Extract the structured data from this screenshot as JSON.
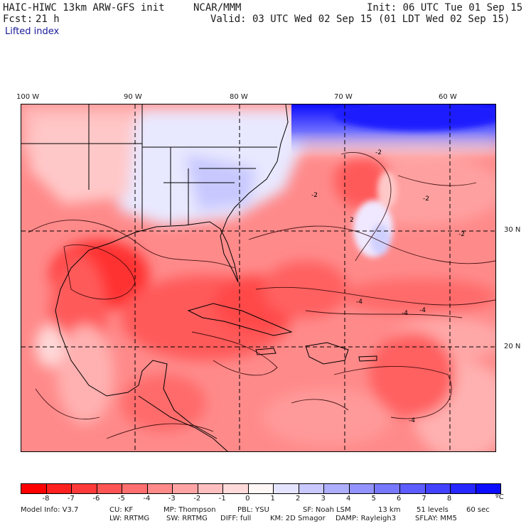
{
  "header": {
    "model": "HAIC-HIWC 13km ARW-GFS init",
    "org": "NCAR/MMM",
    "init": "Init: 06 UTC Tue 01 Sep 15",
    "fcst_label": "Fcst:",
    "fcst_value": "21 h",
    "valid": "Valid: 03 UTC Wed 02 Sep 15 (01 LDT Wed 02 Sep 15)",
    "field": "Lifted index"
  },
  "map": {
    "lon_labels": [
      "100 W",
      "90 W",
      "80 W",
      "70 W",
      "60 W"
    ],
    "lat_labels": [
      "30 N",
      "20 N"
    ],
    "contour_labels": [
      "-2",
      "-2",
      "-2",
      "2",
      "-4",
      "-4",
      "-4",
      "-2",
      "-4"
    ]
  },
  "colorbar": {
    "colors": [
      "#ff0000",
      "#ff2020",
      "#ff3a3a",
      "#ff5555",
      "#ff6f6f",
      "#ff8a8a",
      "#ffa4a4",
      "#ffbfbf",
      "#ffdada",
      "#fff6f6",
      "#e4e4ff",
      "#c9c9ff",
      "#aeaeff",
      "#9393ff",
      "#7878ff",
      "#5d5dff",
      "#4242ff",
      "#2727ff",
      "#0c0cff"
    ],
    "ticks": [
      "-8",
      "-7",
      "-6",
      "-5",
      "-4",
      "-3",
      "-2",
      "-1",
      "0",
      "1",
      "2",
      "3",
      "4",
      "5",
      "6",
      "7",
      "8"
    ],
    "unit": "ºC"
  },
  "footer": {
    "row1": [
      "Model Info: V3.7",
      "CU: KF",
      "MP: Thompson",
      "PBL: YSU",
      "SF: Noah LSM",
      "13 km",
      "51 levels",
      "60 sec"
    ],
    "row2": [
      "LW: RRTMG",
      "SW: RRTMG",
      "DIFF: full",
      "KM: 2D Smagor",
      "DAMP: Rayleigh3",
      "SFLAY: MM5"
    ]
  }
}
